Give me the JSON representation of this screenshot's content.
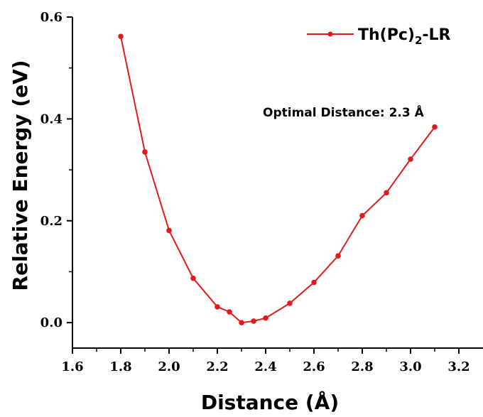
{
  "chart_data": {
    "type": "line",
    "xlabel": "Distance (Å)",
    "ylabel": "Relative Energy (eV)",
    "xlim": [
      1.6,
      3.3
    ],
    "ylim": [
      -0.05,
      0.6
    ],
    "x_ticks": [
      1.6,
      1.8,
      2.0,
      2.2,
      2.4,
      2.6,
      2.8,
      3.0,
      3.2
    ],
    "x_tick_labels": [
      "1.6",
      "1.8",
      "2.0",
      "2.2",
      "2.4",
      "2.6",
      "2.8",
      "3.0",
      "3.2"
    ],
    "y_ticks": [
      0.0,
      0.2,
      0.4,
      0.6
    ],
    "y_tick_labels": [
      "0.0",
      "0.2",
      "0.4",
      "0.6"
    ],
    "grid": false,
    "legend_position": "top-right",
    "series": [
      {
        "name_main": "Th(Pc)",
        "name_sub": "2",
        "name_suffix": "-LR",
        "color": "#e31a1c",
        "x": [
          1.8,
          1.9,
          2.0,
          2.1,
          2.2,
          2.25,
          2.3,
          2.35,
          2.4,
          2.5,
          2.6,
          2.7,
          2.8,
          2.9,
          3.0,
          3.1
        ],
        "y": [
          0.562,
          0.335,
          0.181,
          0.087,
          0.031,
          0.021,
          0.0,
          0.003,
          0.009,
          0.038,
          0.079,
          0.131,
          0.21,
          0.255,
          0.321,
          0.384
        ]
      }
    ],
    "annotations": [
      {
        "text": "Optimal Distance: 2.3 Å"
      }
    ]
  }
}
